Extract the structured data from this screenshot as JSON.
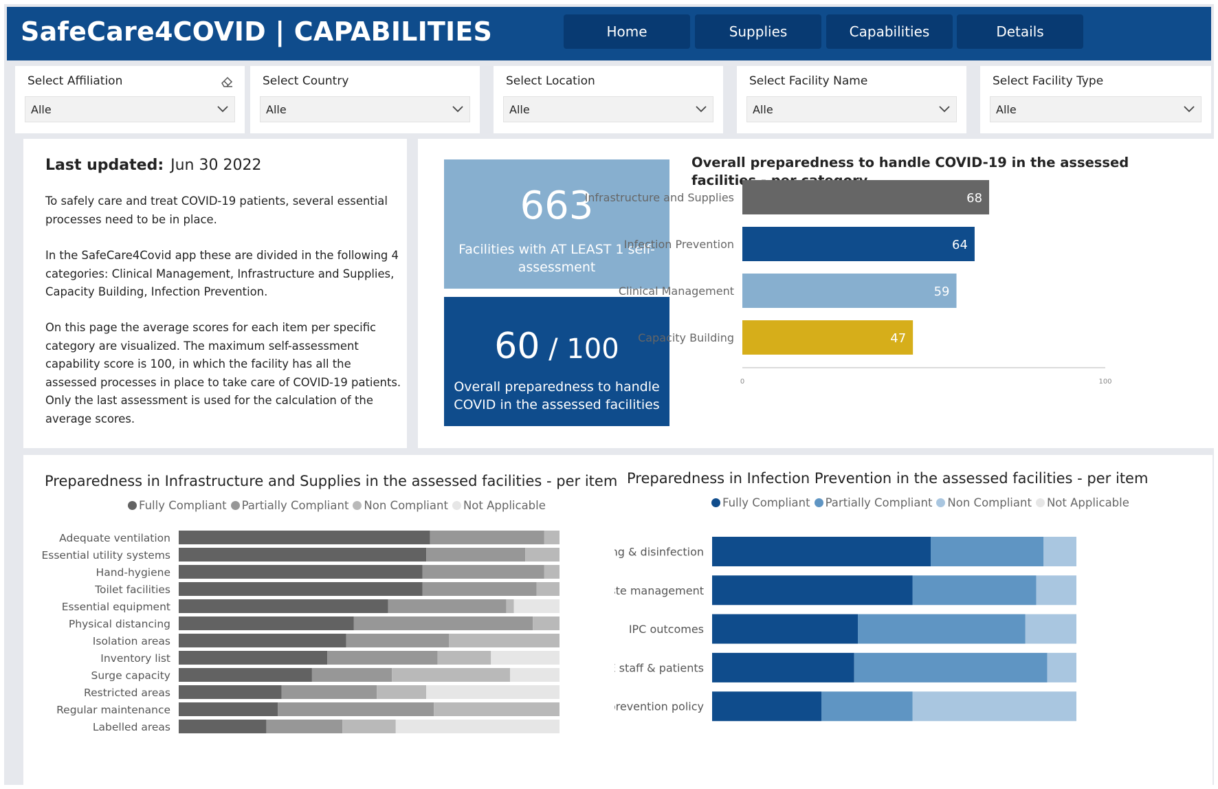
{
  "header": {
    "title": "SafeCare4COVID | CAPABILITIES",
    "nav": [
      "Home",
      "Supplies",
      "Capabilities",
      "Details"
    ]
  },
  "filters": [
    {
      "label": "Select Affiliation",
      "value": "Alle"
    },
    {
      "label": "Select Country",
      "value": "Alle"
    },
    {
      "label": "Select Location",
      "value": "Alle"
    },
    {
      "label": "Select Facility Name",
      "value": "Alle"
    },
    {
      "label": "Select Facility Type",
      "value": "Alle"
    }
  ],
  "info": {
    "last_updated_label": "Last updated:",
    "last_updated_value": "Jun 30 2022",
    "paragraphs": [
      "To safely care and treat COVID-19 patients, several essential processes need to be in place.",
      "In the SafeCare4Covid app these are divided in the following 4 categories:  Clinical Management, Infrastructure and Supplies, Capacity Building, Infection Prevention.",
      "On this page the average scores for each item per specific category are visualized. The maximum self-assessment capability score is 100, in which the facility has all the assessed processes in place to take care of COVID-19 patients. Only the last assessment is used for the calculation of the average scores."
    ]
  },
  "kpis": {
    "facilities_value": "663",
    "facilities_text": "Facilities with AT LEAST 1 self-assessment",
    "preparedness_value": "60",
    "preparedness_max": " / 100",
    "preparedness_text": "Overall preparedness to handle COVID in the assessed facilities"
  },
  "colors": {
    "header": "#0f4c8c",
    "kpi_light": "#87afcf",
    "kpi_dark": "#0f4c8c",
    "cat_infrastructure": "#666666",
    "cat_infection": "#0f4c8c",
    "cat_clinical": "#87afcf",
    "cat_capacity": "#d6ae1a"
  },
  "chart_data": [
    {
      "type": "bar",
      "orientation": "horizontal",
      "title": "Overall preparedness to handle COVID-19 in the assessed facilities - per category",
      "categories": [
        "Infrastructure and Supplies",
        "Infection Prevention",
        "Clinical Management",
        "Capacity Building"
      ],
      "values": [
        68,
        64,
        59,
        47
      ],
      "colors": [
        "#666666",
        "#0f4c8c",
        "#87afcf",
        "#d6ae1a"
      ],
      "xlim": [
        0,
        100
      ],
      "tick_labels": [
        "0",
        "100"
      ],
      "data_labels": true
    },
    {
      "type": "bar",
      "orientation": "horizontal",
      "stacked": true,
      "title": "Preparedness in Infrastructure and Supplies in the assessed facilities - per item",
      "legend_position": "top",
      "categories": [
        "Adequate ventilation",
        "Essential utility systems",
        "Hand-hygiene",
        "Toilet facilities",
        "Essential equipment",
        "Physical distancing",
        "Isolation areas",
        "Inventory list",
        "Surge capacity",
        "Restricted areas",
        "Regular maintenance",
        "Labelled areas"
      ],
      "series": [
        {
          "name": "Fully Compliant",
          "color": "#626262",
          "values": [
            66,
            65,
            64,
            64,
            55,
            46,
            44,
            39,
            35,
            27,
            26,
            23
          ]
        },
        {
          "name": "Partially Compliant",
          "color": "#979797",
          "values": [
            30,
            26,
            32,
            30,
            31,
            47,
            27,
            29,
            21,
            25,
            41,
            20
          ]
        },
        {
          "name": "Non Compliant",
          "color": "#b9b9b9",
          "values": [
            4,
            9,
            4,
            6,
            2,
            7,
            29,
            14,
            31,
            13,
            33,
            14
          ]
        },
        {
          "name": "Not Applicable",
          "color": "#e6e6e6",
          "values": [
            0,
            0,
            0,
            0,
            12,
            0,
            0,
            18,
            13,
            35,
            0,
            43
          ]
        }
      ]
    },
    {
      "type": "bar",
      "orientation": "horizontal",
      "stacked": true,
      "title": "Preparedness in Infection Prevention in the assessed facilities - per item",
      "legend_position": "top",
      "categories": [
        "Cleaning & disinfection",
        "Waste management",
        "IPC outcomes",
        "PPE staff & patients",
        "Infection prevention policy"
      ],
      "series": [
        {
          "name": "Fully Compliant",
          "color": "#0f4c8c",
          "values": [
            60,
            55,
            40,
            39,
            30
          ]
        },
        {
          "name": "Partially Compliant",
          "color": "#5f95c3",
          "values": [
            31,
            34,
            46,
            53,
            25
          ]
        },
        {
          "name": "Non Compliant",
          "color": "#a9c6e0",
          "values": [
            9,
            11,
            14,
            8,
            45
          ]
        },
        {
          "name": "Not Applicable",
          "color": "#e6e6e6",
          "values": [
            0,
            0,
            0,
            0,
            0
          ]
        }
      ]
    }
  ]
}
